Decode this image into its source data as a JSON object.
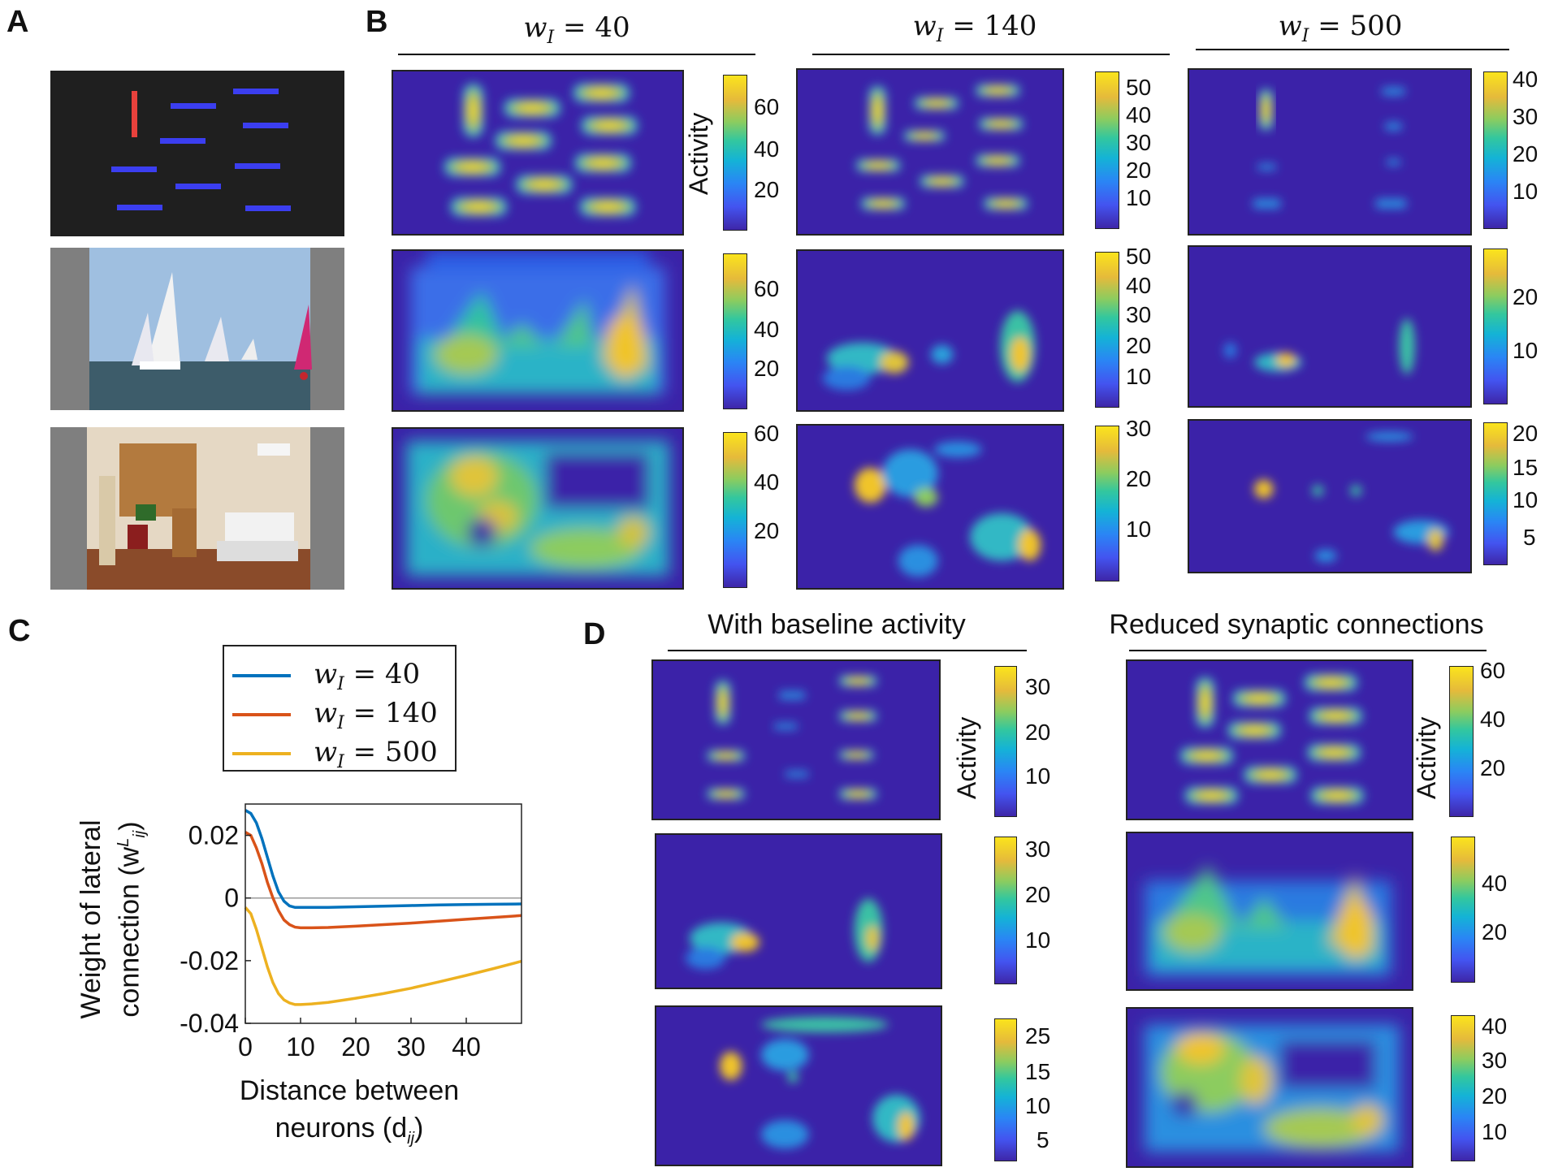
{
  "panels": {
    "A": "A",
    "B": "B",
    "C": "C",
    "D": "D"
  },
  "B": {
    "headers": [
      {
        "var": "w",
        "sub": "I",
        "rel": "= 40"
      },
      {
        "var": "w",
        "sub": "I",
        "rel": "= 140"
      },
      {
        "var": "w",
        "sub": "I",
        "rel": "= 500"
      }
    ],
    "activity_label": "Activity",
    "colorbar_ticks": [
      [
        [
          "60",
          "40",
          "20"
        ],
        [
          "60",
          "40",
          "20"
        ],
        [
          "60",
          "40",
          "20"
        ]
      ],
      [
        [
          "50",
          "40",
          "30",
          "20",
          "10"
        ],
        [
          "50",
          "40",
          "30",
          "20",
          "10"
        ],
        [
          "30",
          "20",
          "10"
        ]
      ],
      [
        [
          "40",
          "30",
          "20",
          "10"
        ],
        [
          "20",
          "10"
        ],
        [
          "20",
          "15",
          "10",
          "5"
        ]
      ]
    ]
  },
  "D": {
    "header_left": "With baseline activity",
    "header_right": "Reduced synaptic connections",
    "activity_label": "Activity",
    "colorbar_ticks_left": [
      [
        "30",
        "20",
        "10"
      ],
      [
        "30",
        "20",
        "10"
      ],
      [
        "25",
        "15",
        "10",
        "5"
      ]
    ],
    "colorbar_ticks_right": [
      [
        "60",
        "40",
        "20"
      ],
      [
        "40",
        "20"
      ],
      [
        "40",
        "30",
        "20",
        "10"
      ]
    ]
  },
  "C": {
    "legend": [
      {
        "var": "w",
        "sub": "I",
        "rel": "= 40",
        "color": "#0072bd"
      },
      {
        "var": "w",
        "sub": "I",
        "rel": "= 140",
        "color": "#d95319"
      },
      {
        "var": "w",
        "sub": "I",
        "rel": "= 500",
        "color": "#edb120"
      }
    ],
    "ylabel_line1": "Weight of lateral",
    "ylabel_line2": "connection (w",
    "ylabel_sup": "L",
    "ylabel_sub": "ij",
    "ylabel_close": ")",
    "xlabel_line1": "Distance between",
    "xlabel_line2": "neurons (d",
    "xlabel_sub": "ij",
    "xlabel_close": ")"
  },
  "chart_data": {
    "type": "line",
    "title": "",
    "xlabel": "Distance between neurons (d_ij)",
    "ylabel": "Weight of lateral connection (w^L_ij)",
    "xlim": [
      0,
      50
    ],
    "ylim": [
      -0.04,
      0.03
    ],
    "xticks": [
      0,
      10,
      20,
      30,
      40
    ],
    "xtick_labels": [
      "0",
      "10",
      "20",
      "30",
      "40"
    ],
    "yticks": [
      0.02,
      0,
      -0.02,
      -0.04
    ],
    "ytick_labels": [
      "0.02",
      "0",
      "-0.02",
      "-0.04"
    ],
    "x": [
      0,
      1,
      2,
      3,
      4,
      5,
      6,
      7,
      8,
      9,
      10,
      12,
      15,
      20,
      25,
      30,
      35,
      40,
      45,
      50
    ],
    "series": [
      {
        "name": "w_I = 40",
        "color": "#0072bd",
        "values": [
          0.028,
          0.027,
          0.024,
          0.019,
          0.013,
          0.007,
          0.002,
          -0.001,
          -0.0025,
          -0.003,
          -0.003,
          -0.003,
          -0.003,
          -0.0028,
          -0.0026,
          -0.0024,
          -0.0022,
          -0.0021,
          -0.002,
          -0.0019
        ]
      },
      {
        "name": "w_I = 140",
        "color": "#d95319",
        "values": [
          0.021,
          0.02,
          0.016,
          0.011,
          0.005,
          0.0,
          -0.004,
          -0.007,
          -0.0085,
          -0.0093,
          -0.0095,
          -0.0095,
          -0.0094,
          -0.009,
          -0.0085,
          -0.008,
          -0.0074,
          -0.0068,
          -0.0062,
          -0.0056
        ]
      },
      {
        "name": "w_I = 500",
        "color": "#edb120",
        "values": [
          -0.003,
          -0.005,
          -0.01,
          -0.016,
          -0.022,
          -0.027,
          -0.0305,
          -0.0325,
          -0.0335,
          -0.034,
          -0.034,
          -0.0338,
          -0.0333,
          -0.032,
          -0.0305,
          -0.0288,
          -0.0268,
          -0.0247,
          -0.0225,
          -0.0202
        ]
      }
    ],
    "legend_position": "top"
  }
}
